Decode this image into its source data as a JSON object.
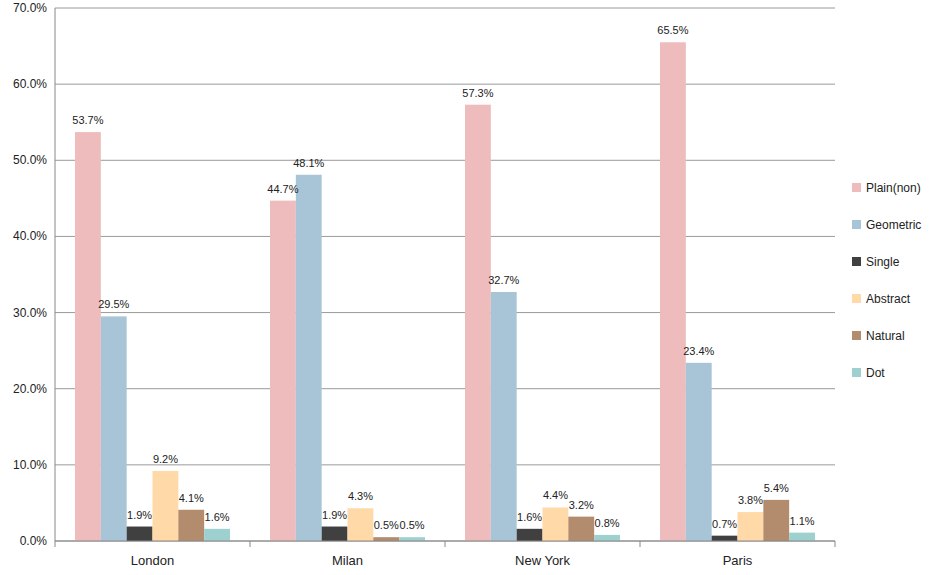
{
  "chart_data": {
    "type": "bar",
    "categories": [
      "London",
      "Milan",
      "New York",
      "Paris"
    ],
    "series": [
      {
        "name": "Plain(non)",
        "color": "#eebcbc",
        "values": [
          53.7,
          44.7,
          57.3,
          65.5
        ],
        "value_labels": [
          "53.7%",
          "44.7%",
          "57.3%",
          "65.5%"
        ]
      },
      {
        "name": "Geometric",
        "color": "#a8c5d7",
        "values": [
          29.5,
          48.1,
          32.7,
          23.4
        ],
        "value_labels": [
          "29.5%",
          "48.1%",
          "32.7%",
          "23.4%"
        ]
      },
      {
        "name": "Single",
        "color": "#404040",
        "values": [
          1.9,
          1.9,
          1.6,
          0.7
        ],
        "value_labels": [
          "1.9%",
          "1.9%",
          "1.6%",
          "0.7%"
        ]
      },
      {
        "name": "Abstract",
        "color": "#ffd9a8",
        "values": [
          9.2,
          4.3,
          4.4,
          3.8
        ],
        "value_labels": [
          "9.2%",
          "4.3%",
          "4.4%",
          "3.8%"
        ]
      },
      {
        "name": "Natural",
        "color": "#b38b6d",
        "values": [
          4.1,
          0.5,
          3.2,
          5.4
        ],
        "value_labels": [
          "4.1%",
          "0.5%",
          "3.2%",
          "5.4%"
        ]
      },
      {
        "name": "Dot",
        "color": "#9fd0d0",
        "values": [
          1.6,
          0.5,
          0.8,
          1.1
        ],
        "value_labels": [
          "1.6%",
          "0.5%",
          "0.8%",
          "1.1%"
        ]
      }
    ],
    "ylim": [
      0,
      70
    ],
    "yticks": [
      {
        "value": 0,
        "label": "0.0%"
      },
      {
        "value": 10,
        "label": "10.0%"
      },
      {
        "value": 20,
        "label": "20.0%"
      },
      {
        "value": 30,
        "label": "30.0%"
      },
      {
        "value": 40,
        "label": "40.0%"
      },
      {
        "value": 50,
        "label": "50.0%"
      },
      {
        "value": 60,
        "label": "60.0%"
      },
      {
        "value": 70,
        "label": "70.0%"
      }
    ],
    "grid": true,
    "legend": "right",
    "data_labels": true
  }
}
